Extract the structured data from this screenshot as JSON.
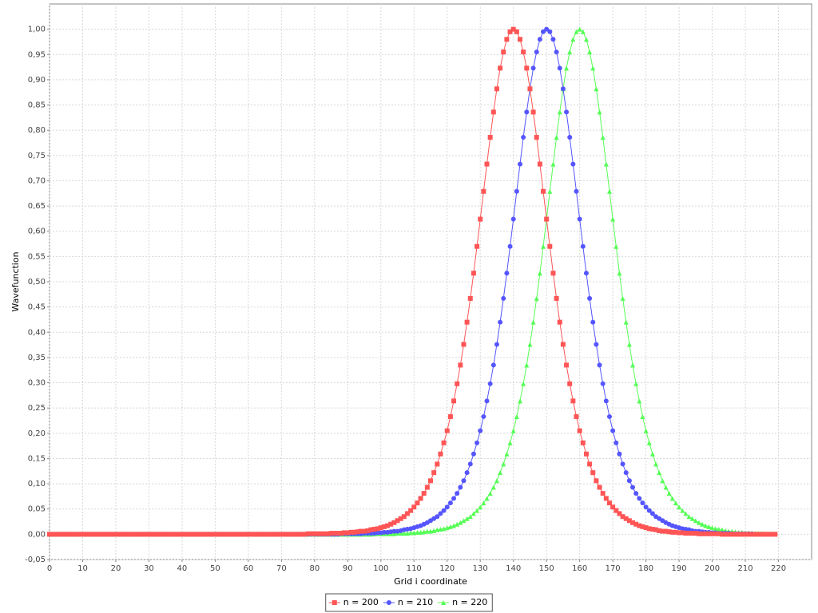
{
  "chart_data": {
    "type": "line",
    "x_label": "Grid i coordinate",
    "y_label": "Wavefunction",
    "xlim": [
      0,
      230
    ],
    "ylim": [
      -0.05,
      1.05
    ],
    "xticks": [
      0,
      10,
      20,
      30,
      40,
      50,
      60,
      70,
      80,
      90,
      100,
      110,
      120,
      130,
      140,
      150,
      160,
      170,
      180,
      190,
      200,
      210,
      220
    ],
    "yticks": [
      {
        "value": -0.05,
        "label": "-0,05"
      },
      {
        "value": 0,
        "label": "0,00"
      },
      {
        "value": 0.05,
        "label": "0,05"
      },
      {
        "value": 0.1,
        "label": "0,10"
      },
      {
        "value": 0.15,
        "label": "0,15"
      },
      {
        "value": 0.2,
        "label": "0,20"
      },
      {
        "value": 0.25,
        "label": "0,25"
      },
      {
        "value": 0.3,
        "label": "0,30"
      },
      {
        "value": 0.35,
        "label": "0,35"
      },
      {
        "value": 0.4,
        "label": "0,40"
      },
      {
        "value": 0.45,
        "label": "0,45"
      },
      {
        "value": 0.5,
        "label": "0,50"
      },
      {
        "value": 0.55,
        "label": "0,55"
      },
      {
        "value": 0.6,
        "label": "0,60"
      },
      {
        "value": 0.65,
        "label": "0,65"
      },
      {
        "value": 0.7,
        "label": "0,70"
      },
      {
        "value": 0.75,
        "label": "0,75"
      },
      {
        "value": 0.8,
        "label": "0,80"
      },
      {
        "value": 0.85,
        "label": "0,85"
      },
      {
        "value": 0.9,
        "label": "0,90"
      },
      {
        "value": 0.95,
        "label": "0,95"
      },
      {
        "value": 1,
        "label": "1,00"
      }
    ],
    "grid": true,
    "legend": "bottom",
    "x": [
      0,
      1,
      2,
      3,
      4,
      5,
      6,
      7,
      8,
      9,
      10,
      11,
      12,
      13,
      14,
      15,
      16,
      17,
      18,
      19,
      20,
      21,
      22,
      23,
      24,
      25,
      26,
      27,
      28,
      29,
      30,
      31,
      32,
      33,
      34,
      35,
      36,
      37,
      38,
      39,
      40,
      41,
      42,
      43,
      44,
      45,
      46,
      47,
      48,
      49,
      50,
      51,
      52,
      53,
      54,
      55,
      56,
      57,
      58,
      59,
      60,
      61,
      62,
      63,
      64,
      65,
      66,
      67,
      68,
      69,
      70,
      71,
      72,
      73,
      74,
      75,
      76,
      77,
      78,
      79,
      80,
      81,
      82,
      83,
      84,
      85,
      86,
      87,
      88,
      89,
      90,
      91,
      92,
      93,
      94,
      95,
      96,
      97,
      98,
      99,
      100,
      101,
      102,
      103,
      104,
      105,
      106,
      107,
      108,
      109,
      110,
      111,
      112,
      113,
      114,
      115,
      116,
      117,
      118,
      119,
      120,
      121,
      122,
      123,
      124,
      125,
      126,
      127,
      128,
      129,
      130,
      131,
      132,
      133,
      134,
      135,
      136,
      137,
      138,
      139,
      140,
      141,
      142,
      143,
      144,
      145,
      146,
      147,
      148,
      149,
      150,
      151,
      152,
      153,
      154,
      155,
      156,
      157,
      158,
      159,
      160,
      161,
      162,
      163,
      164,
      165,
      166,
      167,
      168,
      169,
      170,
      171,
      172,
      173,
      174,
      175,
      176,
      177,
      178,
      179,
      180,
      181,
      182,
      183,
      184,
      185,
      186,
      187,
      188,
      189,
      190,
      191,
      192,
      193,
      194,
      195,
      196,
      197,
      198,
      199,
      200,
      201,
      202,
      203,
      204,
      205,
      206,
      207,
      208,
      209,
      210,
      211,
      212,
      213,
      214,
      215,
      216,
      217,
      218,
      219
    ],
    "series": [
      {
        "name": "n = 200",
        "color": "#ff5555",
        "shape": "square",
        "values": [
          0,
          0,
          0,
          0,
          0,
          0,
          0,
          0,
          0,
          0,
          0,
          0,
          0,
          0,
          0,
          0,
          0,
          0,
          0,
          0,
          0,
          0,
          0,
          0,
          0,
          0,
          0,
          0,
          0,
          0,
          0,
          0,
          0,
          0,
          0,
          0,
          0,
          0,
          0,
          0,
          0,
          0,
          0,
          0,
          0,
          0,
          0,
          0,
          0,
          0,
          0,
          0,
          0,
          0,
          0,
          0,
          0,
          0,
          0,
          0,
          0,
          0,
          0,
          0,
          0,
          0,
          0,
          0,
          0,
          0,
          0,
          0,
          0,
          0,
          0,
          0,
          0,
          0,
          0.001,
          0.001,
          0.001,
          0.001,
          0.001,
          0.001,
          0.001,
          0.002,
          0.002,
          0.002,
          0.002,
          0.003,
          0.003,
          0.004,
          0.004,
          0.005,
          0.006,
          0.006,
          0.007,
          0.009,
          0.01,
          0.011,
          0.013,
          0.015,
          0.017,
          0.02,
          0.023,
          0.027,
          0.031,
          0.035,
          0.041,
          0.047,
          0.054,
          0.062,
          0.071,
          0.081,
          0.093,
          0.106,
          0.122,
          0.139,
          0.159,
          0.181,
          0.205,
          0.233,
          0.264,
          0.298,
          0.335,
          0.376,
          0.42,
          0.467,
          0.517,
          0.57,
          0.624,
          0.679,
          0.733,
          0.786,
          0.836,
          0.882,
          0.923,
          0.955,
          0.98,
          0.995,
          1,
          0.995,
          0.98,
          0.955,
          0.923,
          0.882,
          0.836,
          0.786,
          0.733,
          0.679,
          0.624,
          0.57,
          0.517,
          0.467,
          0.42,
          0.376,
          0.335,
          0.298,
          0.264,
          0.233,
          0.205,
          0.181,
          0.159,
          0.139,
          0.122,
          0.106,
          0.093,
          0.081,
          0.071,
          0.062,
          0.054,
          0.047,
          0.041,
          0.035,
          0.031,
          0.027,
          0.023,
          0.02,
          0.017,
          0.015,
          0.013,
          0.011,
          0.01,
          0.009,
          0.007,
          0.006,
          0.006,
          0.005,
          0.004,
          0.004,
          0.003,
          0.003,
          0.002,
          0.002,
          0.002,
          0.002,
          0.001,
          0.001,
          0.001,
          0.001,
          0.001,
          0.001,
          0.001,
          0,
          0,
          0,
          0,
          0,
          0,
          0,
          0,
          0,
          0,
          0,
          0,
          0,
          0,
          0,
          0,
          0
        ]
      },
      {
        "name": "n = 210",
        "color": "#5555ff",
        "shape": "circle",
        "values": [
          0,
          0,
          0,
          0,
          0,
          0,
          0,
          0,
          0,
          0,
          0,
          0,
          0,
          0,
          0,
          0,
          0,
          0,
          0,
          0,
          0,
          0,
          0,
          0,
          0,
          0,
          0,
          0,
          0,
          0,
          0,
          0,
          0,
          0,
          0,
          0,
          0,
          0,
          0,
          0,
          0,
          0,
          0,
          0,
          0,
          0,
          0,
          0,
          0,
          0,
          0,
          0,
          0,
          0,
          0,
          0,
          0,
          0,
          0,
          0,
          0,
          0,
          0,
          0,
          0,
          0,
          0,
          0,
          0,
          0,
          0,
          0,
          0,
          0,
          0,
          0,
          0,
          0,
          0,
          0,
          0,
          0,
          0,
          0,
          0,
          0,
          0,
          0,
          0.001,
          0.001,
          0.001,
          0.001,
          0.001,
          0.001,
          0.001,
          0.002,
          0.002,
          0.002,
          0.002,
          0.003,
          0.003,
          0.004,
          0.004,
          0.005,
          0.006,
          0.006,
          0.007,
          0.009,
          0.01,
          0.011,
          0.013,
          0.015,
          0.017,
          0.02,
          0.023,
          0.027,
          0.031,
          0.035,
          0.041,
          0.047,
          0.054,
          0.062,
          0.071,
          0.081,
          0.093,
          0.106,
          0.122,
          0.139,
          0.159,
          0.181,
          0.205,
          0.233,
          0.264,
          0.298,
          0.335,
          0.376,
          0.42,
          0.467,
          0.517,
          0.57,
          0.624,
          0.679,
          0.733,
          0.786,
          0.836,
          0.882,
          0.923,
          0.955,
          0.98,
          0.995,
          1,
          0.995,
          0.98,
          0.955,
          0.923,
          0.882,
          0.836,
          0.786,
          0.733,
          0.679,
          0.624,
          0.57,
          0.517,
          0.467,
          0.42,
          0.376,
          0.335,
          0.298,
          0.264,
          0.233,
          0.205,
          0.181,
          0.159,
          0.139,
          0.122,
          0.106,
          0.093,
          0.081,
          0.071,
          0.062,
          0.054,
          0.047,
          0.041,
          0.035,
          0.031,
          0.027,
          0.023,
          0.02,
          0.017,
          0.015,
          0.013,
          0.011,
          0.01,
          0.009,
          0.007,
          0.006,
          0.006,
          0.005,
          0.004,
          0.004,
          0.003,
          0.003,
          0.002,
          0.002,
          0.002,
          0.002,
          0.001,
          0.001,
          0.001,
          0.001,
          0.001,
          0.001,
          0.001,
          0,
          0,
          0,
          0,
          0,
          0,
          0
        ]
      },
      {
        "name": "n = 220",
        "color": "#55ff55",
        "shape": "triangle",
        "values": [
          0,
          0,
          0,
          0,
          0,
          0,
          0,
          0,
          0,
          0,
          0,
          0,
          0,
          0,
          0,
          0,
          0,
          0,
          0,
          0,
          0,
          0,
          0,
          0,
          0,
          0,
          0,
          0,
          0,
          0,
          0,
          0,
          0,
          0,
          0,
          0,
          0,
          0,
          0,
          0,
          0,
          0,
          0,
          0,
          0,
          0,
          0,
          0,
          0,
          0,
          0,
          0,
          0,
          0,
          0,
          0,
          0,
          0,
          0,
          0,
          0,
          0,
          0,
          0,
          0,
          0,
          0,
          0,
          0,
          0,
          0,
          0,
          0,
          0,
          0,
          0,
          0,
          0,
          0,
          0,
          0,
          0,
          0,
          0,
          0,
          0,
          0,
          0,
          0,
          0,
          0,
          0,
          0,
          0,
          0,
          0,
          0,
          0,
          0.001,
          0.001,
          0.001,
          0.001,
          0.001,
          0.001,
          0.001,
          0.002,
          0.002,
          0.002,
          0.002,
          0.003,
          0.003,
          0.004,
          0.004,
          0.005,
          0.006,
          0.006,
          0.007,
          0.009,
          0.01,
          0.011,
          0.013,
          0.015,
          0.017,
          0.02,
          0.023,
          0.027,
          0.031,
          0.035,
          0.041,
          0.047,
          0.054,
          0.062,
          0.071,
          0.081,
          0.093,
          0.106,
          0.122,
          0.139,
          0.159,
          0.181,
          0.205,
          0.233,
          0.264,
          0.298,
          0.335,
          0.376,
          0.42,
          0.467,
          0.517,
          0.57,
          0.624,
          0.679,
          0.733,
          0.786,
          0.836,
          0.882,
          0.923,
          0.955,
          0.98,
          0.995,
          1,
          0.995,
          0.98,
          0.955,
          0.923,
          0.882,
          0.836,
          0.786,
          0.733,
          0.679,
          0.624,
          0.57,
          0.517,
          0.467,
          0.42,
          0.376,
          0.335,
          0.298,
          0.264,
          0.233,
          0.205,
          0.181,
          0.159,
          0.139,
          0.122,
          0.106,
          0.093,
          0.081,
          0.071,
          0.062,
          0.054,
          0.047,
          0.041,
          0.035,
          0.031,
          0.027,
          0.023,
          0.02,
          0.017,
          0.015,
          0.013,
          0.011,
          0.01,
          0.009,
          0.007,
          0.006,
          0.006,
          0.005,
          0.004,
          0.004,
          0.003,
          0.003,
          0.002,
          0.002,
          0.002,
          0.002,
          0.001,
          0.001,
          0.001,
          0.001
        ]
      }
    ]
  }
}
